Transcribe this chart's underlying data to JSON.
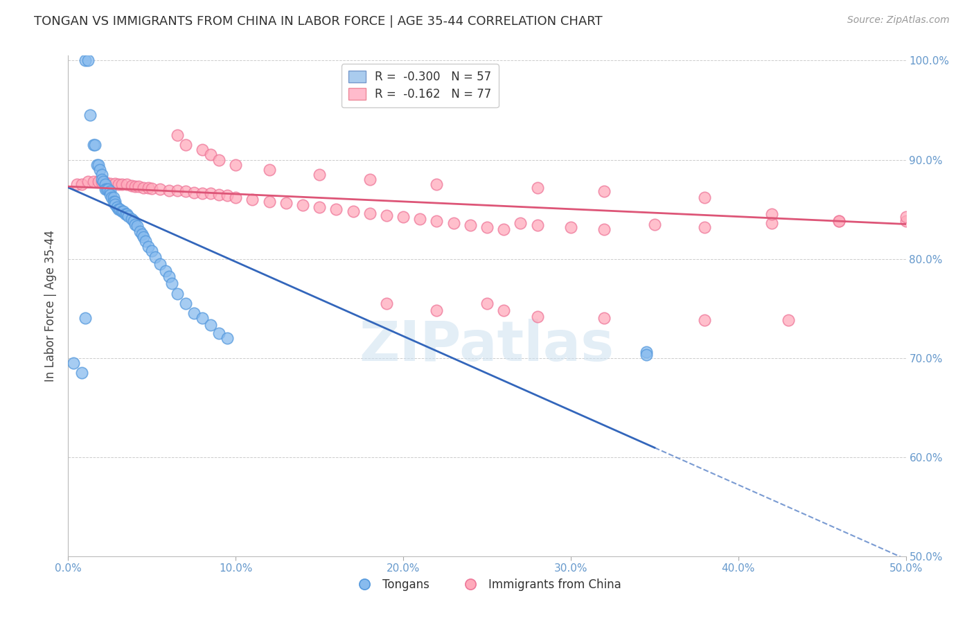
{
  "title": "TONGAN VS IMMIGRANTS FROM CHINA IN LABOR FORCE | AGE 35-44 CORRELATION CHART",
  "source": "Source: ZipAtlas.com",
  "ylabel": "In Labor Force | Age 35-44",
  "watermark": "ZIPatlas",
  "xmin": 0.0,
  "xmax": 0.5,
  "ymin": 0.5,
  "ymax": 1.005,
  "x_ticks": [
    0.0,
    0.1,
    0.2,
    0.3,
    0.4,
    0.5
  ],
  "x_tick_labels": [
    "0.0%",
    "10.0%",
    "20.0%",
    "30.0%",
    "40.0%",
    "50.0%"
  ],
  "y_ticks": [
    0.5,
    0.6,
    0.7,
    0.8,
    0.9,
    1.0
  ],
  "y_tick_labels": [
    "50.0%",
    "60.0%",
    "70.0%",
    "80.0%",
    "90.0%",
    "100.0%"
  ],
  "series1_name": "Tongans",
  "series1_color": "#88bbee",
  "series1_edge": "#5599dd",
  "series1_R": -0.3,
  "series1_N": 57,
  "series2_name": "Immigrants from China",
  "series2_color": "#ffaabb",
  "series2_edge": "#ee7799",
  "series2_R": -0.162,
  "series2_N": 77,
  "background_color": "#ffffff",
  "grid_color": "#cccccc",
  "tick_label_color": "#6699cc",
  "title_color": "#333333",
  "trend1_color": "#3366bb",
  "trend2_color": "#dd5577",
  "trend1_x0": 0.0,
  "trend1_y0": 0.872,
  "trend1_x1": 0.5,
  "trend1_y1": 0.497,
  "trend1_solid_end": 0.35,
  "trend2_x0": 0.0,
  "trend2_y0": 0.873,
  "trend2_x1": 0.5,
  "trend2_y1": 0.835,
  "tongans_x": [
    0.003,
    0.008,
    0.01,
    0.012,
    0.013,
    0.015,
    0.016,
    0.017,
    0.018,
    0.019,
    0.02,
    0.02,
    0.021,
    0.022,
    0.022,
    0.023,
    0.024,
    0.025,
    0.025,
    0.026,
    0.027,
    0.027,
    0.028,
    0.028,
    0.029,
    0.03,
    0.031,
    0.032,
    0.033,
    0.034,
    0.035,
    0.036,
    0.038,
    0.039,
    0.04,
    0.041,
    0.043,
    0.044,
    0.045,
    0.046,
    0.048,
    0.05,
    0.052,
    0.055,
    0.058,
    0.06,
    0.062,
    0.065,
    0.07,
    0.075,
    0.08,
    0.085,
    0.09,
    0.095,
    0.01,
    0.345,
    0.345
  ],
  "tongans_y": [
    0.695,
    0.685,
    1.0,
    1.0,
    0.945,
    0.915,
    0.915,
    0.895,
    0.895,
    0.89,
    0.885,
    0.88,
    0.878,
    0.875,
    0.87,
    0.87,
    0.87,
    0.868,
    0.865,
    0.862,
    0.862,
    0.858,
    0.858,
    0.855,
    0.852,
    0.85,
    0.85,
    0.848,
    0.848,
    0.845,
    0.845,
    0.843,
    0.84,
    0.838,
    0.835,
    0.833,
    0.828,
    0.825,
    0.822,
    0.818,
    0.812,
    0.808,
    0.802,
    0.795,
    0.788,
    0.782,
    0.775,
    0.765,
    0.755,
    0.745,
    0.74,
    0.733,
    0.725,
    0.72,
    0.74,
    0.706,
    0.703
  ],
  "china_x": [
    0.005,
    0.008,
    0.012,
    0.015,
    0.018,
    0.02,
    0.022,
    0.025,
    0.028,
    0.03,
    0.032,
    0.035,
    0.038,
    0.04,
    0.042,
    0.045,
    0.048,
    0.05,
    0.055,
    0.06,
    0.065,
    0.07,
    0.075,
    0.08,
    0.085,
    0.09,
    0.095,
    0.1,
    0.11,
    0.12,
    0.13,
    0.14,
    0.15,
    0.16,
    0.17,
    0.18,
    0.19,
    0.2,
    0.21,
    0.22,
    0.23,
    0.24,
    0.25,
    0.26,
    0.27,
    0.28,
    0.3,
    0.32,
    0.35,
    0.38,
    0.42,
    0.46,
    0.5,
    0.065,
    0.07,
    0.08,
    0.085,
    0.09,
    0.1,
    0.12,
    0.15,
    0.18,
    0.22,
    0.28,
    0.32,
    0.38,
    0.42,
    0.46,
    0.19,
    0.22,
    0.25,
    0.26,
    0.28,
    0.32,
    0.38,
    0.43,
    0.5
  ],
  "china_y": [
    0.875,
    0.875,
    0.878,
    0.878,
    0.878,
    0.877,
    0.877,
    0.876,
    0.876,
    0.875,
    0.875,
    0.875,
    0.874,
    0.873,
    0.873,
    0.872,
    0.872,
    0.871,
    0.87,
    0.869,
    0.869,
    0.868,
    0.867,
    0.866,
    0.866,
    0.865,
    0.864,
    0.862,
    0.86,
    0.858,
    0.856,
    0.854,
    0.852,
    0.85,
    0.848,
    0.846,
    0.844,
    0.842,
    0.84,
    0.838,
    0.836,
    0.834,
    0.832,
    0.83,
    0.836,
    0.834,
    0.832,
    0.83,
    0.835,
    0.832,
    0.836,
    0.838,
    0.838,
    0.925,
    0.915,
    0.91,
    0.905,
    0.9,
    0.895,
    0.89,
    0.885,
    0.88,
    0.875,
    0.872,
    0.868,
    0.862,
    0.845,
    0.838,
    0.755,
    0.748,
    0.755,
    0.748,
    0.742,
    0.74,
    0.738,
    0.738,
    0.842
  ]
}
